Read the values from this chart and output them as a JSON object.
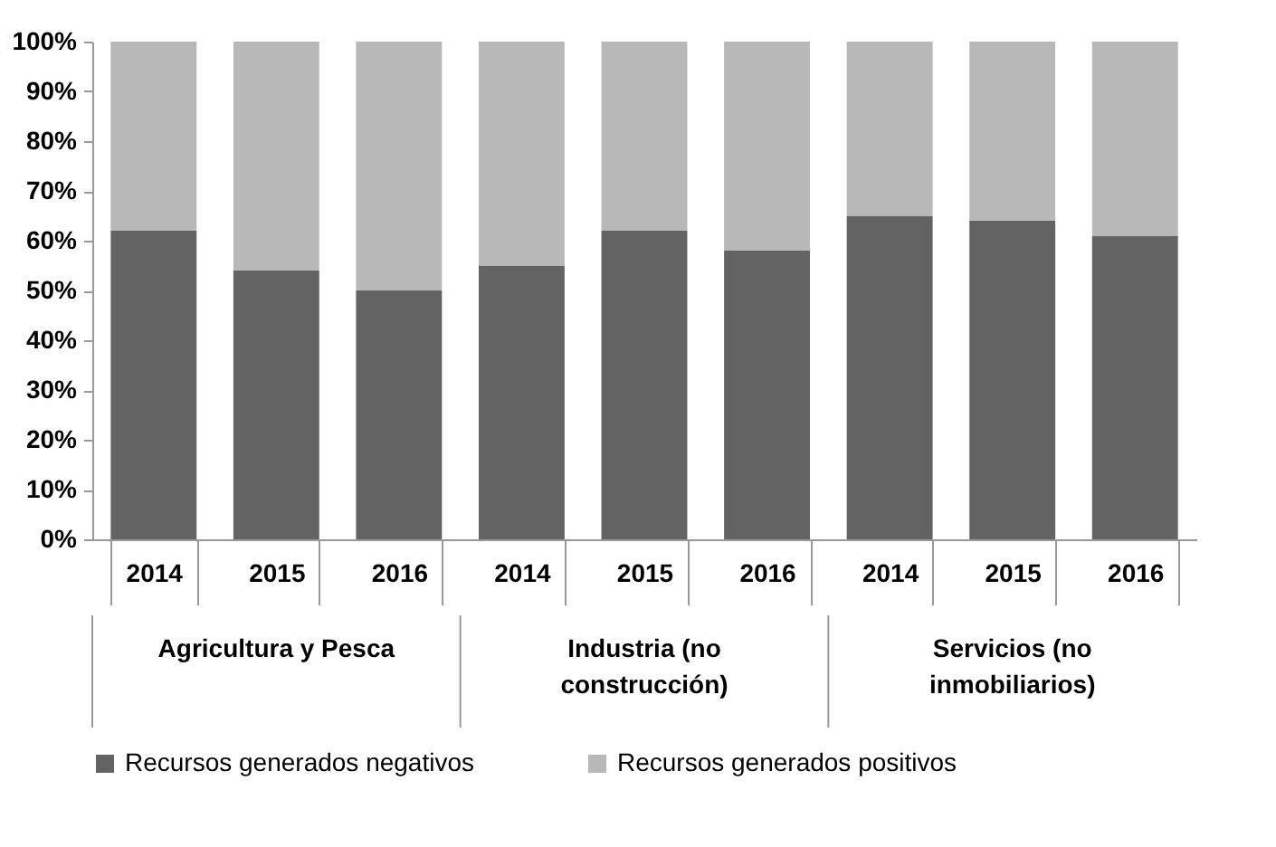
{
  "chart_data": {
    "type": "bar",
    "stacked": true,
    "categories": [
      "2014",
      "2015",
      "2016",
      "2014",
      "2015",
      "2016",
      "2014",
      "2015",
      "2016"
    ],
    "annotations": [
      "Agricultura y Pesca",
      "Industria (no construcción)",
      "Servicios (no inmobiliarios)"
    ],
    "series": [
      {
        "name": "Recursos generados negativos",
        "color": "#636363",
        "values": [
          62,
          54,
          50,
          55,
          62,
          58,
          65,
          64,
          61
        ]
      },
      {
        "name": "Recursos generados positivos",
        "color": "#b8b8b8",
        "values": [
          38,
          46,
          50,
          45,
          38,
          42,
          35,
          36,
          39
        ]
      }
    ],
    "ylim": [
      0,
      100
    ],
    "yticks": [
      {
        "value": 0,
        "label": "0%"
      },
      {
        "value": 10,
        "label": "10%"
      },
      {
        "value": 20,
        "label": "20%"
      },
      {
        "value": 30,
        "label": "30%"
      },
      {
        "value": 40,
        "label": "40%"
      },
      {
        "value": 50,
        "label": "50%"
      },
      {
        "value": 60,
        "label": "60%"
      },
      {
        "value": 70,
        "label": "70%"
      },
      {
        "value": 80,
        "label": "80%"
      },
      {
        "value": 90,
        "label": "90%"
      },
      {
        "value": 100,
        "label": "100%"
      }
    ],
    "grid": false,
    "legend": "bottom"
  }
}
